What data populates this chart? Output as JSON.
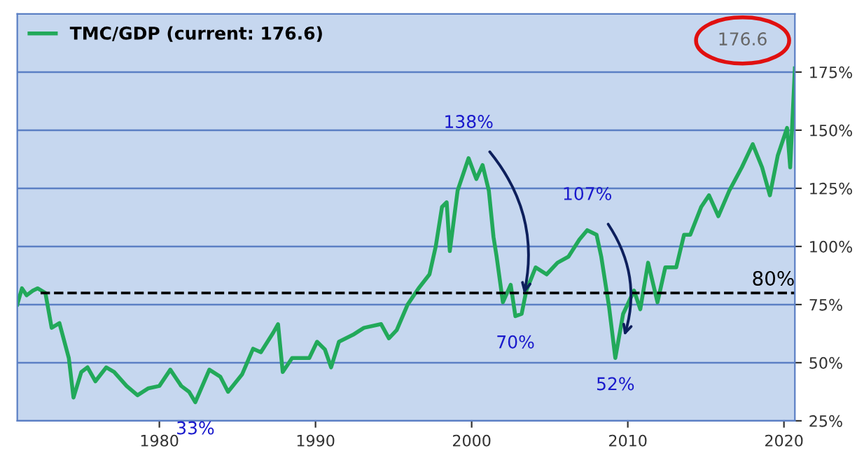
{
  "chart_data": {
    "type": "line",
    "xlim": [
      1970.9,
      2020.7
    ],
    "xticks": [
      1980,
      1990,
      2000,
      2010,
      2020
    ],
    "ylim": [
      25,
      200
    ],
    "yticks": [
      {
        "value": 25,
        "label": "25%"
      },
      {
        "value": 50,
        "label": "50%"
      },
      {
        "value": 75,
        "label": "75%"
      },
      {
        "value": 100,
        "label": "100%"
      },
      {
        "value": 125,
        "label": "125%"
      },
      {
        "value": 150,
        "label": "150%"
      },
      {
        "value": 175,
        "label": "175%"
      }
    ],
    "grid": "y",
    "legend": "top left",
    "marker": "none",
    "line_style": "solid",
    "series": [
      {
        "name": "TMC/GDP (current: 176.6)",
        "color": "#22a95a",
        "x": [
          1970.9,
          1971.2,
          1971.5,
          1971.9,
          1972.2,
          1972.7,
          1973.1,
          1973.6,
          1974.2,
          1974.5,
          1975.0,
          1975.4,
          1975.9,
          1976.6,
          1977.1,
          1977.9,
          1978.6,
          1979.3,
          1980.0,
          1980.7,
          1981.4,
          1981.9,
          1982.3,
          1983.2,
          1983.9,
          1984.4,
          1985.3,
          1986.0,
          1986.5,
          1987.3,
          1987.6,
          1987.9,
          1988.5,
          1989.6,
          1990.1,
          1990.6,
          1991.0,
          1991.5,
          1992.4,
          1993.1,
          1994.2,
          1994.7,
          1995.2,
          1995.9,
          1996.6,
          1997.3,
          1997.7,
          1998.1,
          1998.4,
          1998.6,
          1999.1,
          1999.6,
          1999.8,
          2000.3,
          2000.7,
          2001.1,
          2001.4,
          2001.6,
          2002.0,
          2002.5,
          2002.8,
          2003.2,
          2003.5,
          2004.1,
          2004.8,
          2005.5,
          2006.2,
          2006.9,
          2007.4,
          2008.0,
          2008.3,
          2008.8,
          2009.2,
          2009.7,
          2010.4,
          2010.8,
          2011.3,
          2011.9,
          2012.4,
          2013.1,
          2013.6,
          2014.0,
          2014.7,
          2015.2,
          2015.8,
          2016.5,
          2017.3,
          2018.0,
          2018.6,
          2019.1,
          2019.6,
          2020.2,
          2020.4,
          2020.7
        ],
        "values": [
          75,
          82,
          79,
          81,
          82,
          80,
          65,
          67,
          52,
          35,
          46,
          48,
          42,
          48,
          46,
          40,
          36,
          39,
          40,
          47,
          40,
          37.5,
          33,
          47,
          44,
          37.5,
          45,
          56,
          54.5,
          63,
          66.6,
          46,
          52,
          52,
          59,
          55.7,
          48,
          59,
          62,
          65,
          66.6,
          60.5,
          64,
          75,
          82,
          88,
          100,
          117,
          119,
          98,
          124,
          134,
          138,
          129,
          135,
          124,
          104,
          95.6,
          76,
          83.5,
          70,
          71,
          81,
          91,
          88,
          93,
          95.6,
          103,
          107,
          105,
          95.6,
          74,
          52,
          71,
          81,
          73,
          93,
          76,
          91,
          91,
          105,
          105,
          117,
          122,
          113,
          124,
          134,
          144,
          134,
          122,
          139,
          151,
          134,
          176.6
        ]
      }
    ],
    "ref_lines": [
      {
        "axis": "y",
        "value": 80,
        "label": "80%",
        "color": "#000000",
        "line_style": "dashed"
      }
    ],
    "annotations": [
      {
        "text": "138%",
        "x": 1999.8,
        "y": 138
      },
      {
        "text": "70%",
        "x": 2002.8,
        "y": 70
      },
      {
        "text": "107%",
        "x": 2007.4,
        "y": 107
      },
      {
        "text": "52%",
        "x": 2009.2,
        "y": 52
      },
      {
        "text": "33%",
        "x": 1982.3,
        "y": 33
      },
      {
        "text": "176.6",
        "x": 2020.7,
        "y": 176.6
      }
    ]
  }
}
